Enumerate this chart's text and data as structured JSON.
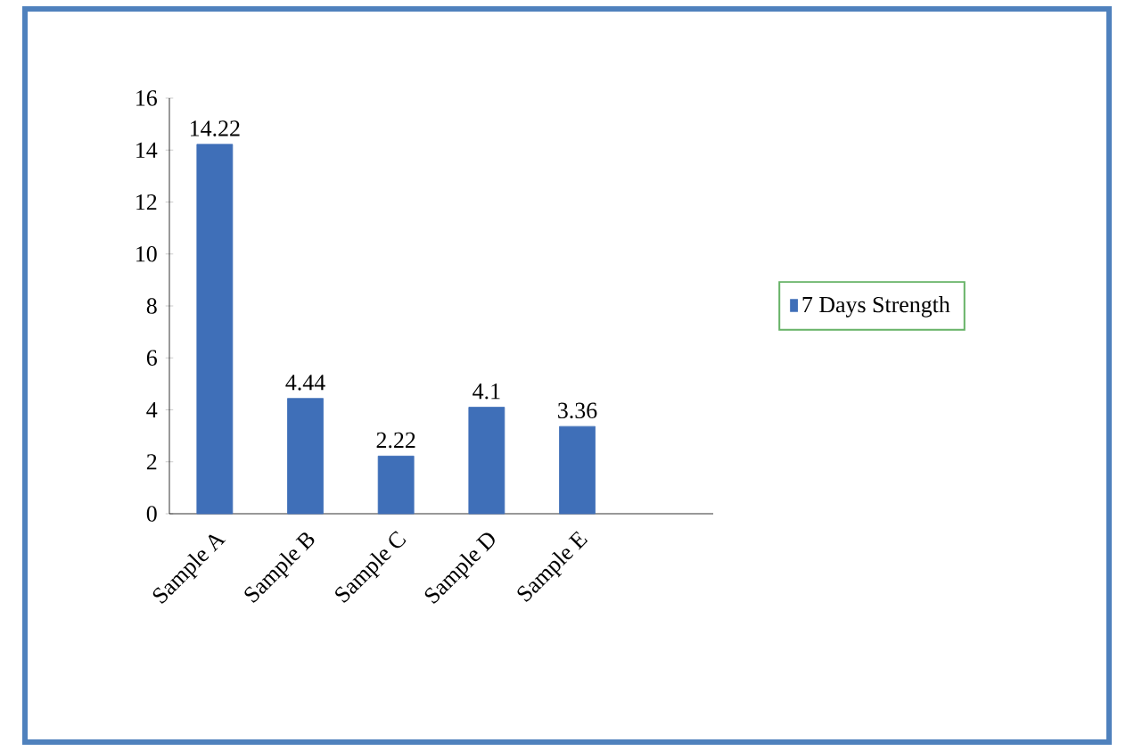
{
  "chart_data": {
    "type": "bar",
    "categories": [
      "Sample A",
      "Sample B",
      "Sample C",
      "Sample D",
      "Sample E"
    ],
    "series": [
      {
        "name": "7 Days Strength",
        "color": "#3f6fb8",
        "values": [
          14.22,
          4.44,
          2.22,
          4.1,
          3.36
        ]
      }
    ],
    "ylim": [
      0,
      16
    ],
    "yticks": [
      0,
      2,
      4,
      6,
      8,
      10,
      12,
      14,
      16
    ],
    "data_labels": true,
    "legend": "right",
    "grid": false
  }
}
